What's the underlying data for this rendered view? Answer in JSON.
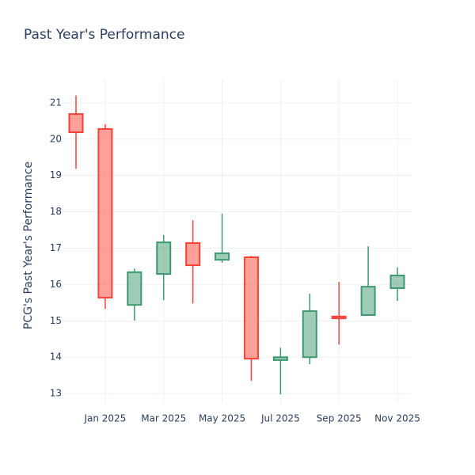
{
  "chart_data": {
    "type": "candlestick",
    "title": "Past Year's Performance",
    "y_label": "PCG's Past Year's Performance",
    "categories": [
      null,
      "Jan 2025",
      null,
      "Mar 2025",
      null,
      "May 2025",
      null,
      "Jul 2025",
      null,
      "Sep 2025",
      null,
      "Nov 2025"
    ],
    "open": [
      20.69,
      20.28,
      15.44,
      16.29,
      17.14,
      16.68,
      16.75,
      13.92,
      14.0,
      15.12,
      15.16,
      15.9
    ],
    "high": [
      21.2,
      20.41,
      16.44,
      17.36,
      17.77,
      17.95,
      16.79,
      14.26,
      15.75,
      16.07,
      17.05,
      16.47
    ],
    "low": [
      19.19,
      15.33,
      15.01,
      15.57,
      15.48,
      16.6,
      13.35,
      12.98,
      13.81,
      14.35,
      15.16,
      15.55
    ],
    "close": [
      20.19,
      15.64,
      16.34,
      17.16,
      16.53,
      16.86,
      13.96,
      14.0,
      15.27,
      15.07,
      15.94,
      16.25
    ],
    "increasing_color": "#3d9970",
    "decreasing_color": "#ff4136",
    "ylim": [
      12.72,
      21.65
    ],
    "yticks": [
      13,
      14,
      15,
      16,
      17,
      18,
      19,
      20,
      21
    ],
    "grid": true
  }
}
